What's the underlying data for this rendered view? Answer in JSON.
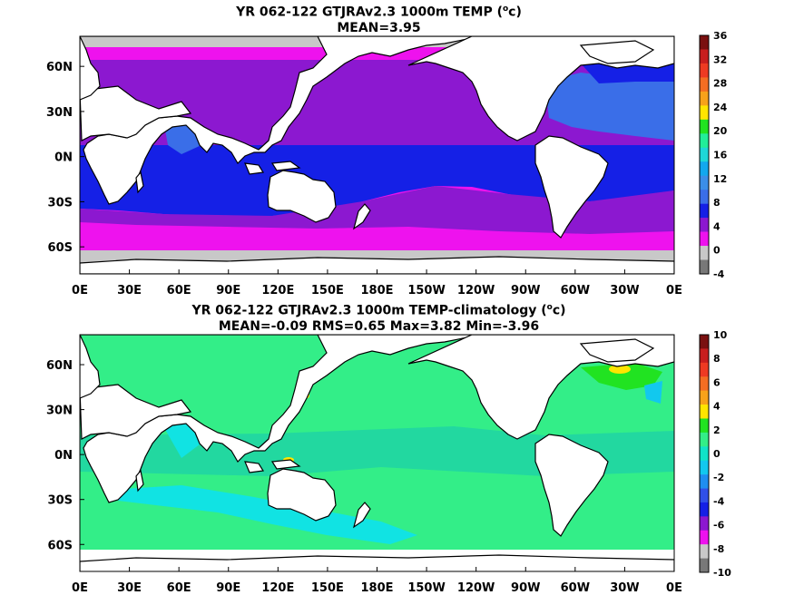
{
  "panels": [
    {
      "title_line1_pre": "YR 062-122 GTJRAv2.3 1000m TEMP (",
      "title_line1_unit_sup": "o",
      "title_line1_post": "c)",
      "title_line2": "MEAN=3.95",
      "colorbar": {
        "labels": [
          "36",
          "32",
          "28",
          "24",
          "20",
          "16",
          "12",
          "8",
          "4",
          "0",
          "-4"
        ],
        "colors": [
          "#7a1010",
          "#c81e1e",
          "#ee3a22",
          "#f36d22",
          "#f7a21a",
          "#ffe500",
          "#21e321",
          "#22ee99",
          "#1ed7d7",
          "#12a8ee",
          "#3b8ee8",
          "#3a6ee8",
          "#1520e6",
          "#8c18d0",
          "#ee12ee",
          "#c8c8c8",
          "#787878"
        ]
      }
    },
    {
      "title_line1_pre": "YR 062-122 GTJRAv2.3 1000m TEMP-climatology (",
      "title_line1_unit_sup": "o",
      "title_line1_post": "c)",
      "title_line2": "MEAN=-0.09   RMS=0.65   Max=3.82   Min=-3.96",
      "colorbar": {
        "labels": [
          "10",
          "8",
          "6",
          "4",
          "2",
          "0",
          "-2",
          "-4",
          "-6",
          "-8",
          "-10"
        ],
        "colors": [
          "#7a1010",
          "#c81e1e",
          "#ee3a22",
          "#f36d22",
          "#f7a21a",
          "#ffe500",
          "#21e321",
          "#33ee88",
          "#11e3c8",
          "#12c8ee",
          "#1e8ef0",
          "#3050e8",
          "#1520e6",
          "#8c18d0",
          "#ee12ee",
          "#c8c8c8",
          "#787878"
        ]
      }
    }
  ],
  "x_ticks": [
    "0E",
    "30E",
    "60E",
    "90E",
    "120E",
    "150E",
    "180E",
    "150W",
    "120W",
    "90W",
    "60W",
    "30W",
    "0E"
  ],
  "y_ticks": [
    "60N",
    "30N",
    "0N",
    "30S",
    "60S"
  ],
  "colors": {
    "land": "#ffffff",
    "coast": "#000000",
    "panel1_ocean_cold_north": "#8c18d0",
    "panel1_ocean_warm": "#1520e6",
    "panel1_ocean_south": "#ee12ee",
    "panel1_atlantic": "#3a6ee8",
    "panel2_ocean": "#33ee88",
    "panel2_ocean_alt": "#22d8a0",
    "panel2_cyan": "#11e3e3"
  }
}
